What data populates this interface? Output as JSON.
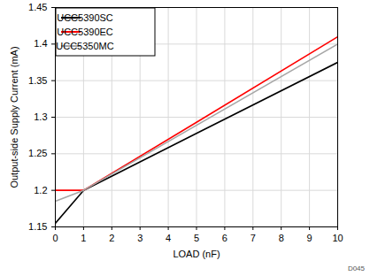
{
  "chart_data": {
    "type": "line",
    "x_label": "LOAD (nF)",
    "y_label": "Output-side Supply Current (mA)",
    "x": [
      0,
      1,
      5,
      10
    ],
    "series": [
      {
        "name": "UCC5390SC",
        "color": "#000000",
        "values": [
          1.155,
          1.2,
          1.278,
          1.375
        ]
      },
      {
        "name": "UCC5390EC",
        "color": "#ff0000",
        "values": [
          1.2,
          1.2,
          1.293,
          1.41
        ]
      },
      {
        "name": "UCC5350MC",
        "color": "#a6a6a6",
        "values": [
          1.185,
          1.2,
          1.289,
          1.4
        ]
      }
    ],
    "xlim": [
      0,
      10
    ],
    "xticks": [
      0,
      1,
      2,
      3,
      4,
      5,
      6,
      7,
      8,
      9,
      10
    ],
    "ylim": [
      1.15,
      1.45
    ],
    "yticks": [
      1.15,
      1.2,
      1.25,
      1.3,
      1.35,
      1.4,
      1.45
    ],
    "grid": true,
    "legend": "upper left",
    "annotations": [
      "D045"
    ]
  }
}
